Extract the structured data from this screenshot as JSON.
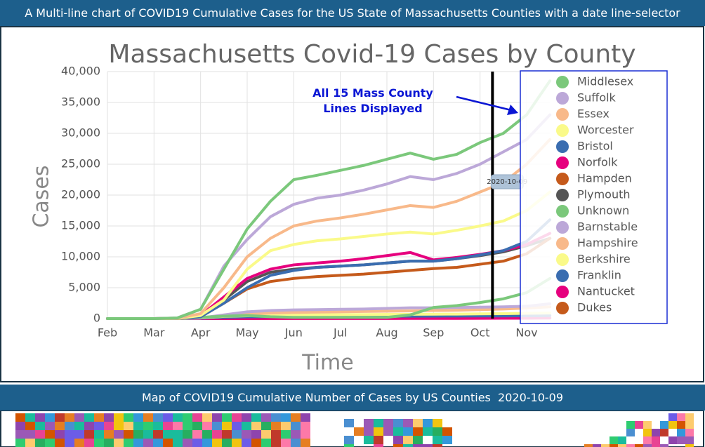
{
  "header": {
    "title": "A Multi-line chart of COVID19 Cumulative Cases for the US State of Massachusetts Counties with a date line-selector"
  },
  "chart_data": {
    "type": "line",
    "title": "Massachusetts Covid-19 Cases by County",
    "x_label": "Time",
    "y_label": "Cases",
    "annotation": "All 15 Mass County Lines Displayed",
    "date_line": {
      "label": "2020-10-09"
    },
    "categories": [
      "Feb",
      null,
      "Mar",
      null,
      "Apr",
      null,
      "May",
      null,
      "Jun",
      null,
      "Jul",
      null,
      "Aug",
      null,
      "Sep",
      null,
      "Oct",
      null,
      "Nov",
      null
    ],
    "ylim": [
      0,
      40000
    ],
    "yticks": [
      0,
      {
        "value": 5000,
        "label": "5,000"
      },
      {
        "value": 10000,
        "label": "10,000"
      },
      {
        "value": 15000,
        "label": "15,000"
      },
      {
        "value": 20000,
        "label": "20,000"
      },
      {
        "value": 25000,
        "label": "25,000"
      },
      {
        "value": 30000,
        "label": "30,000"
      },
      {
        "value": 35000,
        "label": "35,000"
      },
      {
        "value": 40000,
        "label": "40,000"
      }
    ],
    "grid": true,
    "series": [
      {
        "name": "Middlesex",
        "color": "#7bc87b",
        "values": [
          0,
          0,
          0,
          100,
          1500,
          8000,
          14500,
          19000,
          22500,
          23200,
          24000,
          24800,
          25800,
          26800,
          25800,
          26600,
          28500,
          30000,
          33000,
          38500
        ]
      },
      {
        "name": "Suffolk",
        "color": "#bca8d8",
        "values": [
          0,
          0,
          0,
          100,
          1500,
          8500,
          12800,
          16500,
          18500,
          19500,
          20000,
          20800,
          21800,
          23000,
          22500,
          23500,
          25000,
          27000,
          29000,
          33000
        ]
      },
      {
        "name": "Essex",
        "color": "#f8b98a",
        "values": [
          0,
          0,
          0,
          50,
          800,
          5000,
          10000,
          13000,
          15000,
          15800,
          16300,
          16900,
          17600,
          18300,
          18000,
          19000,
          20500,
          22000,
          25000,
          29000
        ]
      },
      {
        "name": "Worcester",
        "color": "#fafa8a",
        "values": [
          0,
          0,
          0,
          30,
          500,
          3000,
          8000,
          11000,
          12000,
          12600,
          12900,
          13300,
          13700,
          14000,
          13700,
          14300,
          15000,
          15800,
          17500,
          20500
        ]
      },
      {
        "name": "Bristol",
        "color": "#3a6db0",
        "values": [
          0,
          0,
          0,
          30,
          300,
          2500,
          5000,
          7000,
          7800,
          8300,
          8500,
          8700,
          9000,
          9300,
          9300,
          9700,
          10300,
          11000,
          12500,
          16000
        ]
      },
      {
        "name": "Norfolk",
        "color": "#e6007e",
        "values": [
          0,
          0,
          0,
          40,
          500,
          3500,
          6500,
          8000,
          8700,
          9000,
          9300,
          9700,
          10200,
          10700,
          9500,
          9900,
          10400,
          11000,
          12000,
          13800
        ]
      },
      {
        "name": "Hampden",
        "color": "#c55a1b",
        "values": [
          0,
          0,
          0,
          20,
          300,
          2500,
          4800,
          6000,
          6500,
          6800,
          7000,
          7200,
          7500,
          7800,
          8100,
          8300,
          8800,
          9300,
          10500,
          13000
        ]
      },
      {
        "name": "Plymouth",
        "color": "#555555",
        "values": [
          0,
          0,
          0,
          30,
          400,
          3000,
          6000,
          7500,
          8000,
          8300,
          8500,
          8700,
          9000,
          9300,
          9300,
          9700,
          10200,
          10800,
          11800,
          13000
        ]
      },
      {
        "name": "Unknown",
        "color": "#7bc87b",
        "values": [
          0,
          0,
          0,
          0,
          200,
          400,
          500,
          300,
          200,
          200,
          200,
          200,
          200,
          600,
          1800,
          2100,
          2600,
          3200,
          4200,
          6500
        ]
      },
      {
        "name": "Barnstable",
        "color": "#bca8d8",
        "values": [
          0,
          0,
          0,
          10,
          100,
          600,
          1100,
          1300,
          1400,
          1450,
          1500,
          1550,
          1650,
          1750,
          1750,
          1800,
          1850,
          1900,
          2000,
          2400
        ]
      },
      {
        "name": "Hampshire",
        "color": "#f8b98a",
        "values": [
          0,
          0,
          0,
          10,
          100,
          400,
          700,
          900,
          1000,
          1050,
          1100,
          1150,
          1200,
          1250,
          1300,
          1350,
          1450,
          1550,
          1700,
          1900
        ]
      },
      {
        "name": "Berkshire",
        "color": "#fafa8a",
        "values": [
          0,
          0,
          0,
          10,
          100,
          350,
          450,
          550,
          600,
          620,
          640,
          660,
          680,
          700,
          710,
          730,
          760,
          800,
          850,
          900
        ]
      },
      {
        "name": "Franklin",
        "color": "#3a6db0",
        "values": [
          0,
          0,
          0,
          5,
          50,
          200,
          280,
          320,
          340,
          350,
          360,
          370,
          380,
          390,
          400,
          410,
          420,
          430,
          450,
          480
        ]
      },
      {
        "name": "Nantucket",
        "color": "#e6007e",
        "values": [
          0,
          0,
          0,
          0,
          5,
          10,
          12,
          12,
          13,
          13,
          14,
          15,
          20,
          25,
          30,
          35,
          40,
          50,
          60,
          80
        ]
      },
      {
        "name": "Dukes",
        "color": "#c55a1b",
        "values": [
          0,
          0,
          0,
          0,
          5,
          10,
          20,
          30,
          40,
          45,
          50,
          55,
          60,
          65,
          70,
          75,
          80,
          90,
          100,
          120
        ]
      }
    ]
  },
  "map_section": {
    "title": "Map of COVID19 Cumulative Number of Cases by US Counties  2020-10-09"
  }
}
